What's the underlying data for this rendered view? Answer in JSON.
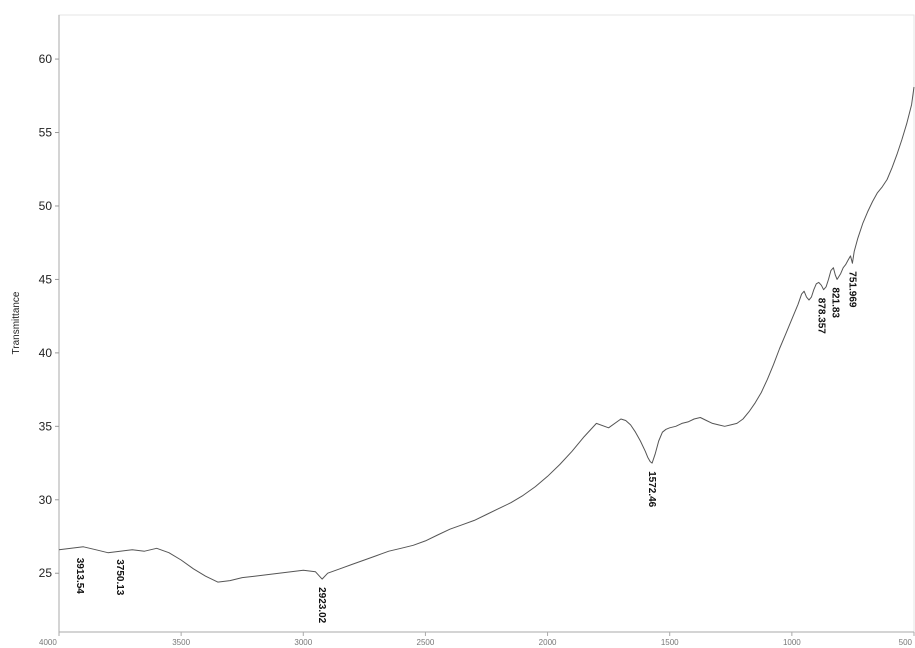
{
  "chart_data": {
    "type": "line",
    "title": "",
    "xlabel": "",
    "ylabel": "Transmittance",
    "xlim": [
      4000,
      500
    ],
    "ylim": [
      21,
      63
    ],
    "x_direction": "descending",
    "grid": false,
    "y_ticks": [
      25,
      30,
      35,
      40,
      45,
      50,
      55,
      60
    ],
    "x_ticks": [
      4000,
      3500,
      3000,
      2500,
      2000,
      1500,
      1000,
      500
    ],
    "x_tick_labels": [
      "4000",
      "3500",
      "3000",
      "2500",
      "2000",
      "1500",
      "1000",
      "500"
    ],
    "series": [
      {
        "color": "#555555",
        "x": [
          4000,
          3950,
          3900,
          3850,
          3800,
          3750,
          3700,
          3650,
          3600,
          3550,
          3500,
          3450,
          3400,
          3350,
          3300,
          3250,
          3200,
          3150,
          3100,
          3050,
          3000,
          2950,
          2923,
          2900,
          2850,
          2800,
          2750,
          2700,
          2650,
          2600,
          2550,
          2500,
          2450,
          2400,
          2350,
          2300,
          2250,
          2200,
          2150,
          2100,
          2050,
          2000,
          1950,
          1900,
          1850,
          1800,
          1750,
          1700,
          1680,
          1660,
          1640,
          1620,
          1600,
          1590,
          1580,
          1572,
          1560,
          1545,
          1530,
          1515,
          1500,
          1475,
          1450,
          1425,
          1400,
          1375,
          1350,
          1325,
          1300,
          1275,
          1250,
          1225,
          1200,
          1175,
          1150,
          1125,
          1100,
          1075,
          1050,
          1025,
          1000,
          975,
          960,
          950,
          940,
          930,
          920,
          910,
          900,
          890,
          879,
          870,
          860,
          850,
          840,
          830,
          822,
          815,
          800,
          790,
          780,
          770,
          760,
          752,
          745,
          730,
          710,
          690,
          670,
          650,
          630,
          610,
          590,
          570,
          550,
          530,
          510,
          500
        ],
        "y": [
          26.6,
          26.7,
          26.8,
          26.6,
          26.4,
          26.5,
          26.6,
          26.5,
          26.7,
          26.4,
          25.9,
          25.3,
          24.8,
          24.4,
          24.5,
          24.7,
          24.8,
          24.9,
          25.0,
          25.1,
          25.2,
          25.1,
          24.6,
          25.0,
          25.3,
          25.6,
          25.9,
          26.2,
          26.5,
          26.7,
          26.9,
          27.2,
          27.6,
          28.0,
          28.3,
          28.6,
          29.0,
          29.4,
          29.8,
          30.3,
          30.9,
          31.6,
          32.4,
          33.3,
          34.3,
          35.2,
          34.9,
          35.5,
          35.4,
          35.1,
          34.6,
          34.0,
          33.3,
          32.9,
          32.6,
          32.5,
          33.1,
          34.0,
          34.6,
          34.8,
          34.9,
          35.0,
          35.2,
          35.3,
          35.5,
          35.6,
          35.4,
          35.2,
          35.1,
          35.0,
          35.1,
          35.2,
          35.5,
          36.0,
          36.6,
          37.3,
          38.2,
          39.2,
          40.3,
          41.3,
          42.3,
          43.3,
          44.0,
          44.2,
          43.8,
          43.6,
          43.8,
          44.3,
          44.7,
          44.8,
          44.6,
          44.3,
          44.5,
          45.0,
          45.6,
          45.8,
          45.3,
          45.0,
          45.4,
          45.8,
          46.0,
          46.3,
          46.6,
          46.1,
          46.9,
          47.8,
          48.8,
          49.6,
          50.3,
          50.9,
          51.3,
          51.8,
          52.6,
          53.5,
          54.5,
          55.6,
          56.9,
          58.1
        ]
      }
    ],
    "annotations": [
      {
        "label": "3913.54",
        "x": 3913.54,
        "y": 26.6
      },
      {
        "label": "3750.13",
        "x": 3750.13,
        "y": 26.5
      },
      {
        "label": "2923.02",
        "x": 2923.02,
        "y": 24.6
      },
      {
        "label": "1572.46",
        "x": 1572.46,
        "y": 32.5
      },
      {
        "label": "878.357",
        "x": 878.357,
        "y": 44.3
      },
      {
        "label": "821.83",
        "x": 821.83,
        "y": 45.0
      },
      {
        "label": "751.969",
        "x": 751.969,
        "y": 46.1
      }
    ]
  }
}
